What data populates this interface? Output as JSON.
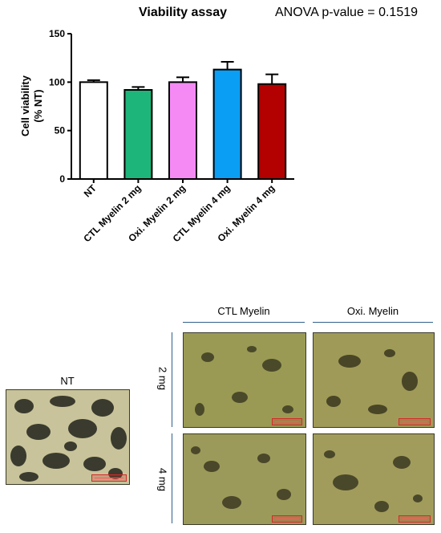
{
  "chart_data": {
    "type": "bar",
    "title": "Viability assay",
    "annotation": "ANOVA p-value = 0.1519",
    "ylabel_line1": "Cell viability",
    "ylabel_line2": "(% NT)",
    "ylim": [
      0,
      150
    ],
    "yticks": [
      0,
      50,
      100,
      150
    ],
    "categories": [
      "NT",
      "CTL Myelin 2 mg",
      "Oxi. Myelin 2 mg",
      "CTL Myelin 4 mg",
      "Oxi. Myelin 4 mg"
    ],
    "values": [
      100,
      92,
      100,
      113,
      98
    ],
    "errors": [
      2,
      3,
      5,
      8,
      10
    ],
    "colors": [
      "#ffffff",
      "#1db57a",
      "#f58af5",
      "#0a9ef5",
      "#b30000"
    ],
    "grid": false,
    "legend": "none"
  },
  "images": {
    "nt_label": "NT",
    "col1_label": "CTL Myelin",
    "col2_label": "Oxi. Myelin",
    "row1_label": "2 mg",
    "row2_label": "4 mg"
  }
}
